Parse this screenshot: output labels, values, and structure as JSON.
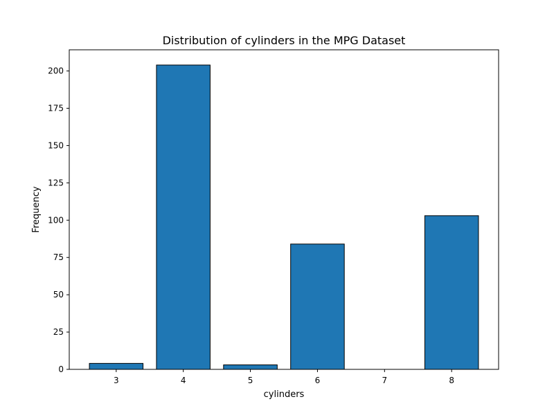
{
  "chart_data": {
    "type": "bar",
    "title": "Distribution of cylinders in the MPG Dataset",
    "xlabel": "cylinders",
    "ylabel": "Frequency",
    "categories": [
      "3",
      "4",
      "5",
      "6",
      "7",
      "8"
    ],
    "x": [
      3,
      4,
      5,
      6,
      7,
      8
    ],
    "values": [
      4,
      204,
      3,
      84,
      0,
      103
    ],
    "xlim": [
      2.3,
      8.7
    ],
    "ylim": [
      0,
      214.2
    ],
    "yticks": [
      0,
      25,
      50,
      75,
      100,
      125,
      150,
      175,
      200
    ],
    "xticks": [
      3,
      4,
      5,
      6,
      7,
      8
    ],
    "bar_color": "#1f77b4",
    "bar_edge_color": "#000000",
    "grid": false,
    "legend": "none"
  }
}
